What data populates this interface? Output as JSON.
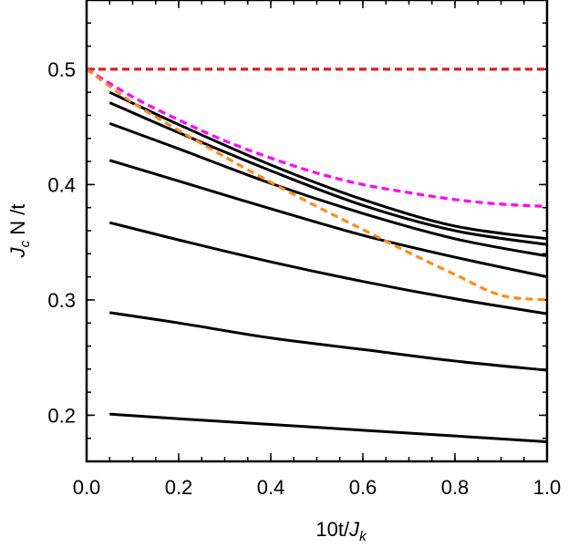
{
  "chart_data": {
    "type": "line",
    "title": "",
    "xlabel_main": "10t/",
    "xlabel_italic": "J",
    "xlabel_sub": "k",
    "ylabel_italic": "J",
    "ylabel_sub": "c",
    "ylabel_main": " N /t",
    "xlim": [
      0.0,
      1.0
    ],
    "ylim": [
      0.16,
      0.56
    ],
    "x_ticks": [
      0.0,
      0.2,
      0.4,
      0.6,
      0.8,
      1.0
    ],
    "x_tick_labels": [
      "0.0",
      "0.2",
      "0.4",
      "0.6",
      "0.8",
      "1.0"
    ],
    "y_ticks": [
      0.2,
      0.3,
      0.4,
      0.5
    ],
    "y_tick_labels": [
      "0.2",
      "0.3",
      "0.4",
      "0.5"
    ],
    "grid": false,
    "series": [
      {
        "style": "solid",
        "color": "#000000",
        "x": [
          0.05,
          0.2,
          0.4,
          0.6,
          0.8,
          1.0
        ],
        "y": [
          0.48,
          0.452,
          0.417,
          0.387,
          0.364,
          0.353
        ]
      },
      {
        "style": "solid",
        "color": "#000000",
        "x": [
          0.05,
          0.2,
          0.4,
          0.6,
          0.8,
          1.0
        ],
        "y": [
          0.471,
          0.445,
          0.412,
          0.382,
          0.36,
          0.348
        ]
      },
      {
        "style": "solid",
        "color": "#000000",
        "x": [
          0.05,
          0.2,
          0.4,
          0.6,
          0.8,
          1.0
        ],
        "y": [
          0.453,
          0.431,
          0.401,
          0.375,
          0.353,
          0.338
        ]
      },
      {
        "style": "solid",
        "color": "#000000",
        "x": [
          0.05,
          0.2,
          0.4,
          0.6,
          0.8,
          1.0
        ],
        "y": [
          0.421,
          0.403,
          0.379,
          0.356,
          0.337,
          0.32
        ]
      },
      {
        "style": "solid",
        "color": "#000000",
        "x": [
          0.05,
          0.2,
          0.4,
          0.6,
          0.8,
          1.0
        ],
        "y": [
          0.367,
          0.352,
          0.333,
          0.316,
          0.301,
          0.288
        ]
      },
      {
        "style": "solid",
        "color": "#000000",
        "x": [
          0.05,
          0.2,
          0.4,
          0.6,
          0.8,
          1.0
        ],
        "y": [
          0.289,
          0.28,
          0.267,
          0.257,
          0.247,
          0.239
        ]
      },
      {
        "style": "solid",
        "color": "#000000",
        "x": [
          0.05,
          0.2,
          0.4,
          0.6,
          0.8,
          1.0
        ],
        "y": [
          0.201,
          0.197,
          0.192,
          0.187,
          0.182,
          0.177
        ]
      },
      {
        "style": "dashed",
        "color": "#e41a1c",
        "x": [
          0.0,
          1.0
        ],
        "y": [
          0.5,
          0.5
        ]
      },
      {
        "style": "dashed",
        "color": "#ff00ff",
        "x": [
          0.0,
          0.1,
          0.2,
          0.3,
          0.4,
          0.5,
          0.6,
          0.7,
          0.8,
          0.9,
          1.0
        ],
        "y": [
          0.5,
          0.476,
          0.456,
          0.438,
          0.423,
          0.41,
          0.4,
          0.393,
          0.387,
          0.383,
          0.381
        ]
      },
      {
        "style": "dashed",
        "color": "#ff8c1a",
        "x": [
          0.0,
          0.1,
          0.2,
          0.3,
          0.4,
          0.5,
          0.6,
          0.7,
          0.8,
          0.9,
          1.0
        ],
        "y": [
          0.5,
          0.471,
          0.447,
          0.424,
          0.402,
          0.381,
          0.361,
          0.341,
          0.322,
          0.304,
          0.3
        ]
      }
    ]
  }
}
